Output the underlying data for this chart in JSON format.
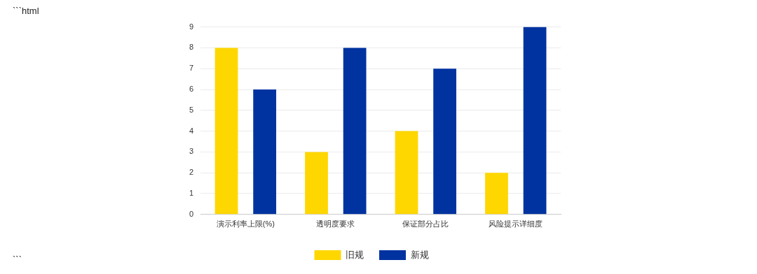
{
  "chart_data": {
    "type": "bar",
    "categories": [
      "演示利率上限(%)",
      "透明度要求",
      "保证部分占比",
      "风险提示详细度"
    ],
    "series": [
      {
        "name": "旧规",
        "color": "#ffd700",
        "values": [
          8,
          3,
          4,
          2
        ]
      },
      {
        "name": "新规",
        "color": "#0033a0",
        "values": [
          6,
          8,
          7,
          9
        ]
      }
    ],
    "ylim": [
      0,
      9
    ],
    "yticks": [
      0,
      1,
      2,
      3,
      4,
      5,
      6,
      7,
      8,
      9
    ],
    "grid": "y",
    "legend": "bottom",
    "annotations": [
      "```html",
      "```"
    ]
  }
}
